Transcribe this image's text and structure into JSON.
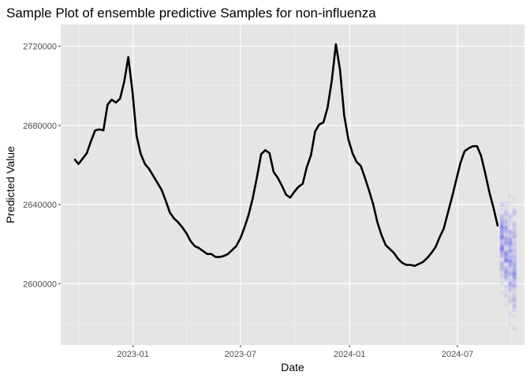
{
  "chart_data": {
    "type": "line",
    "title": "Sample Plot of ensemble predictive Samples for non-influenza",
    "xlabel": "Date",
    "ylabel": "Predicted Value",
    "x_range": [
      "2022-09-01",
      "2024-10-22"
    ],
    "ylim": [
      2569000,
      2731000
    ],
    "x_ticks": [
      {
        "label": "2023-01",
        "date": "2023-01-01"
      },
      {
        "label": "2023-07",
        "date": "2023-07-01"
      },
      {
        "label": "2024-01",
        "date": "2024-01-01"
      },
      {
        "label": "2024-07",
        "date": "2024-07-01"
      }
    ],
    "y_ticks": [
      {
        "label": "2600000",
        "value": 2600000
      },
      {
        "label": "2640000",
        "value": 2640000
      },
      {
        "label": "2680000",
        "value": 2680000
      },
      {
        "label": "2720000",
        "value": 2720000
      }
    ],
    "grid": true,
    "background": "#e5e5e5",
    "series": [
      {
        "color": "#000000",
        "points": [
          [
            "2022-09-24",
            2663000
          ],
          [
            "2022-10-01",
            2660500
          ],
          [
            "2022-10-15",
            2666000
          ],
          [
            "2022-10-22",
            2672000
          ],
          [
            "2022-10-29",
            2677500
          ],
          [
            "2022-11-05",
            2678000
          ],
          [
            "2022-11-12",
            2677500
          ],
          [
            "2022-11-19",
            2690500
          ],
          [
            "2022-11-26",
            2693000
          ],
          [
            "2022-12-03",
            2691500
          ],
          [
            "2022-12-10",
            2693500
          ],
          [
            "2022-12-17",
            2702000
          ],
          [
            "2022-12-24",
            2714500
          ],
          [
            "2022-12-31",
            2697000
          ],
          [
            "2023-01-07",
            2674500
          ],
          [
            "2023-01-14",
            2665500
          ],
          [
            "2023-01-21",
            2660500
          ],
          [
            "2023-01-28",
            2658000
          ],
          [
            "2023-02-04",
            2654500
          ],
          [
            "2023-02-11",
            2651000
          ],
          [
            "2023-02-18",
            2647500
          ],
          [
            "2023-02-25",
            2642000
          ],
          [
            "2023-03-04",
            2636000
          ],
          [
            "2023-03-11",
            2633000
          ],
          [
            "2023-03-18",
            2631000
          ],
          [
            "2023-03-25",
            2628500
          ],
          [
            "2023-04-01",
            2625500
          ],
          [
            "2023-04-08",
            2621500
          ],
          [
            "2023-04-15",
            2619000
          ],
          [
            "2023-04-22",
            2618000
          ],
          [
            "2023-04-29",
            2616500
          ],
          [
            "2023-05-06",
            2615000
          ],
          [
            "2023-05-13",
            2615000
          ],
          [
            "2023-05-20",
            2613500
          ],
          [
            "2023-05-27",
            2613500
          ],
          [
            "2023-06-03",
            2614000
          ],
          [
            "2023-06-10",
            2615000
          ],
          [
            "2023-06-17",
            2617000
          ],
          [
            "2023-06-24",
            2619000
          ],
          [
            "2023-07-01",
            2623000
          ],
          [
            "2023-07-08",
            2628500
          ],
          [
            "2023-07-15",
            2635000
          ],
          [
            "2023-07-22",
            2643500
          ],
          [
            "2023-07-29",
            2654000
          ],
          [
            "2023-08-05",
            2665500
          ],
          [
            "2023-08-12",
            2667500
          ],
          [
            "2023-08-19",
            2666000
          ],
          [
            "2023-08-26",
            2656500
          ],
          [
            "2023-09-02",
            2653500
          ],
          [
            "2023-09-09",
            2649500
          ],
          [
            "2023-09-16",
            2645000
          ],
          [
            "2023-09-23",
            2643500
          ],
          [
            "2023-09-30",
            2646500
          ],
          [
            "2023-10-07",
            2649000
          ],
          [
            "2023-10-14",
            2650500
          ],
          [
            "2023-10-21",
            2659000
          ],
          [
            "2023-10-28",
            2665000
          ],
          [
            "2023-11-04",
            2677000
          ],
          [
            "2023-11-11",
            2680500
          ],
          [
            "2023-11-18",
            2681500
          ],
          [
            "2023-11-25",
            2689000
          ],
          [
            "2023-12-02",
            2702500
          ],
          [
            "2023-12-09",
            2721000
          ],
          [
            "2023-12-16",
            2708000
          ],
          [
            "2023-12-23",
            2685000
          ],
          [
            "2023-12-30",
            2673000
          ],
          [
            "2024-01-06",
            2666000
          ],
          [
            "2024-01-13",
            2661500
          ],
          [
            "2024-01-20",
            2659500
          ],
          [
            "2024-01-27",
            2653500
          ],
          [
            "2024-02-03",
            2647000
          ],
          [
            "2024-02-10",
            2640000
          ],
          [
            "2024-02-17",
            2631000
          ],
          [
            "2024-02-24",
            2624500
          ],
          [
            "2024-03-02",
            2619500
          ],
          [
            "2024-03-09",
            2617500
          ],
          [
            "2024-03-16",
            2615500
          ],
          [
            "2024-03-23",
            2612500
          ],
          [
            "2024-03-30",
            2610500
          ],
          [
            "2024-04-06",
            2609500
          ],
          [
            "2024-04-13",
            2609500
          ],
          [
            "2024-04-20",
            2609000
          ],
          [
            "2024-04-27",
            2610000
          ],
          [
            "2024-05-04",
            2611000
          ],
          [
            "2024-05-11",
            2613000
          ],
          [
            "2024-05-18",
            2615500
          ],
          [
            "2024-05-25",
            2618500
          ],
          [
            "2024-06-01",
            2623500
          ],
          [
            "2024-06-08",
            2628000
          ],
          [
            "2024-06-15",
            2636000
          ],
          [
            "2024-06-22",
            2644000
          ],
          [
            "2024-06-29",
            2652500
          ],
          [
            "2024-07-06",
            2661000
          ],
          [
            "2024-07-13",
            2667000
          ],
          [
            "2024-07-20",
            2668500
          ],
          [
            "2024-07-27",
            2669500
          ],
          [
            "2024-08-03",
            2669500
          ],
          [
            "2024-08-10",
            2664500
          ],
          [
            "2024-08-17",
            2655500
          ],
          [
            "2024-08-24",
            2646000
          ],
          [
            "2024-08-31",
            2638000
          ],
          [
            "2024-09-07",
            2629000
          ]
        ]
      },
      {
        "type": "scatter",
        "color": "#0000ff",
        "opacity": 0.04,
        "forecast_dates": [
          "2024-09-14",
          "2024-09-21",
          "2024-09-28",
          "2024-10-05"
        ],
        "sample_centers": [
          2621000,
          2617000,
          2613000,
          2610000
        ],
        "sample_ranges": [
          [
            2593000,
            2640000
          ],
          [
            2586000,
            2646000
          ],
          [
            2576000,
            2649000
          ],
          [
            2572000,
            2648000
          ]
        ],
        "samples_per_date": 100
      }
    ]
  }
}
